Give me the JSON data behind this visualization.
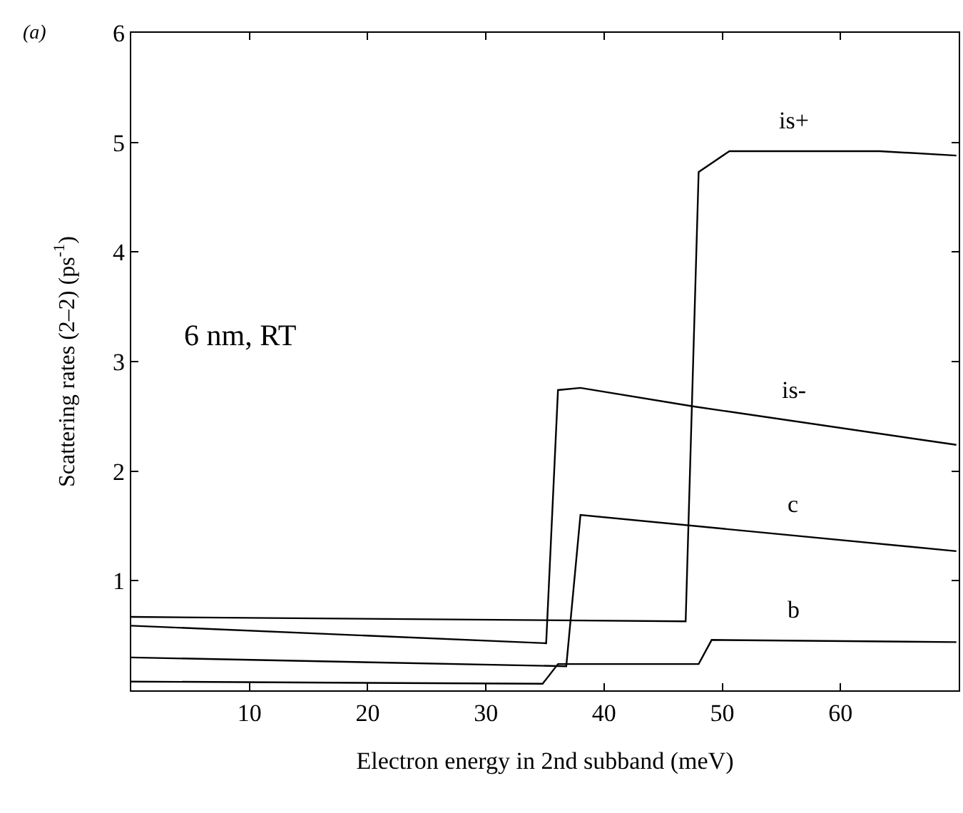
{
  "chart_data": {
    "type": "line",
    "xlabel": "Electron energy in 2nd subband (meV)",
    "ylabel": "Scattering rates (2–2) (ps$^{-1}$)",
    "xlim": [
      0,
      70
    ],
    "xticks": [
      10,
      20,
      30,
      40,
      50,
      60
    ],
    "ylim": [
      0,
      6
    ],
    "yticks": [
      1,
      2,
      3,
      4,
      5,
      6
    ],
    "grid": false,
    "legend": false,
    "marker": "none",
    "line_style": "solid",
    "series": [
      {
        "name": "is+",
        "color": "#000000",
        "x": [
          0,
          46.9,
          48.0,
          50.6,
          63.3,
          69.8
        ],
        "values": [
          0.67,
          0.63,
          4.73,
          4.92,
          4.92,
          4.88
        ]
      },
      {
        "name": "is-",
        "color": "#000000",
        "x": [
          0,
          35.1,
          36.1,
          38.0,
          47.6,
          69.8
        ],
        "values": [
          0.59,
          0.43,
          2.74,
          2.76,
          2.59,
          2.24
        ]
      },
      {
        "name": "c",
        "color": "#000000",
        "x": [
          0,
          36.8,
          38.0,
          69.8
        ],
        "values": [
          0.3,
          0.22,
          1.6,
          1.27
        ]
      },
      {
        "name": "b",
        "color": "#000000",
        "x": [
          0,
          34.8,
          36.1,
          44.9,
          48.0,
          49.1,
          69.8
        ],
        "values": [
          0.08,
          0.06,
          0.24,
          0.24,
          0.24,
          0.46,
          0.44
        ]
      }
    ],
    "annotations": [
      "(a)",
      "6 nm, RT"
    ]
  }
}
